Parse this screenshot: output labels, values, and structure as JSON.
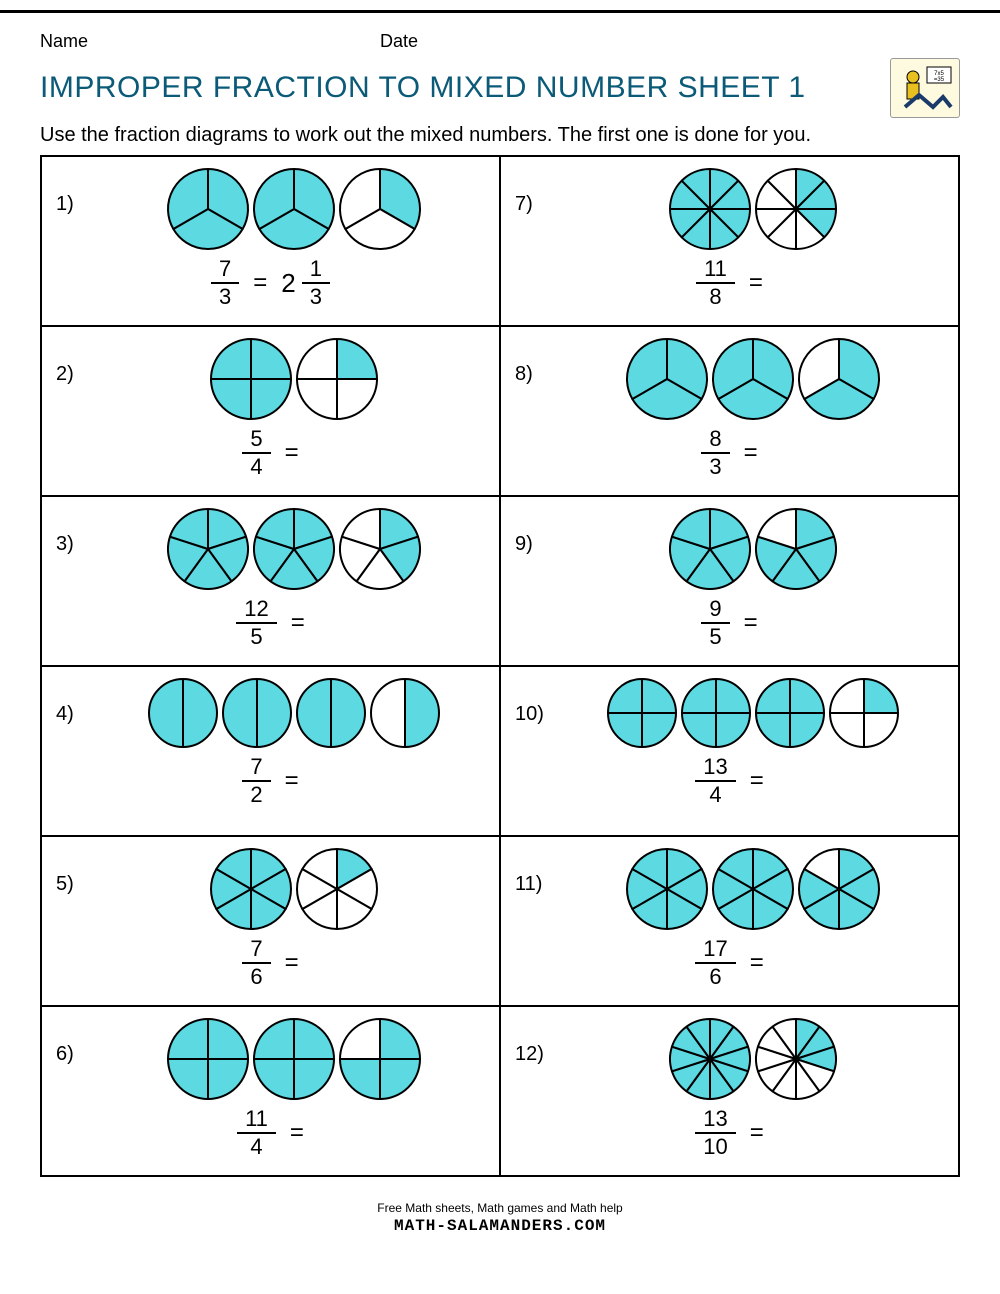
{
  "header": {
    "name_label": "Name",
    "date_label": "Date"
  },
  "title": "IMPROPER FRACTION TO MIXED NUMBER SHEET 1",
  "instructions": "Use the fraction diagrams to work out the mixed numbers. The first one is done for you.",
  "style": {
    "fill_color": "#5dd9e2",
    "empty_color": "#ffffff",
    "stroke_color": "#000000",
    "stroke_width": 2,
    "circle_radius": 40,
    "title_color": "#0a5a78",
    "border_color": "#000000"
  },
  "problems": [
    {
      "n": "1)",
      "numerator": 7,
      "denominator": 3,
      "answer": {
        "whole": 2,
        "num": 1,
        "den": 3
      }
    },
    {
      "n": "2)",
      "numerator": 5,
      "denominator": 4,
      "answer": null
    },
    {
      "n": "3)",
      "numerator": 12,
      "denominator": 5,
      "answer": null
    },
    {
      "n": "4)",
      "numerator": 7,
      "denominator": 2,
      "answer": null
    },
    {
      "n": "5)",
      "numerator": 7,
      "denominator": 6,
      "answer": null
    },
    {
      "n": "6)",
      "numerator": 11,
      "denominator": 4,
      "answer": null
    },
    {
      "n": "7)",
      "numerator": 11,
      "denominator": 8,
      "answer": null
    },
    {
      "n": "8)",
      "numerator": 8,
      "denominator": 3,
      "answer": null
    },
    {
      "n": "9)",
      "numerator": 9,
      "denominator": 5,
      "answer": null
    },
    {
      "n": "10)",
      "numerator": 13,
      "denominator": 4,
      "answer": null
    },
    {
      "n": "11)",
      "numerator": 17,
      "denominator": 6,
      "answer": null
    },
    {
      "n": "12)",
      "numerator": 13,
      "denominator": 10,
      "answer": null
    }
  ],
  "footer": {
    "line1": "Free Math sheets, Math games and Math help",
    "line2": "MATH-SALAMANDERS.COM"
  },
  "equals": "="
}
